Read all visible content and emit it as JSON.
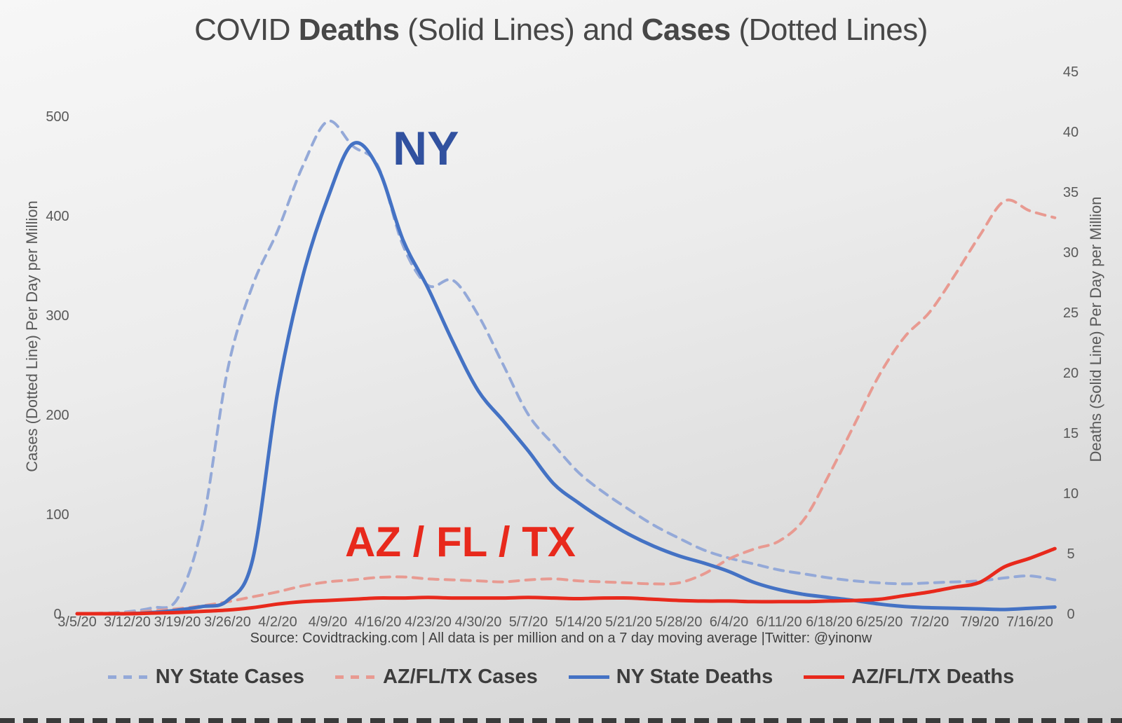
{
  "title": {
    "prefix": "COVID ",
    "bold1": "Deaths",
    "mid1": " (Solid Lines) and ",
    "bold2": "Cases",
    "suffix": " (Dotted Lines)"
  },
  "source_line": "Source: Covidtracking.com | All data is per million and on a 7 day moving average |Twitter: @yinonw",
  "legend": [
    {
      "label": "NY State Cases",
      "style": "dashed",
      "color": "#94a9d8"
    },
    {
      "label": "AZ/FL/TX Cases",
      "style": "dashed",
      "color": "#e89a91"
    },
    {
      "label": "NY State Deaths",
      "style": "solid",
      "color": "#4472c4"
    },
    {
      "label": "AZ/FL/TX Deaths",
      "style": "solid",
      "color": "#e8291c"
    }
  ],
  "chart_data": {
    "type": "line",
    "title": "COVID Deaths (Solid Lines) and Cases (Dotted Lines)",
    "x_tick_labels": [
      "3/5/20",
      "3/12/20",
      "3/19/20",
      "3/26/20",
      "4/2/20",
      "4/9/20",
      "4/16/20",
      "4/23/20",
      "4/30/20",
      "5/7/20",
      "5/14/20",
      "5/21/20",
      "5/28/20",
      "6/4/20",
      "6/11/20",
      "6/18/20",
      "6/25/20",
      "7/2/20",
      "7/9/20",
      "7/16/20"
    ],
    "sampling": "series values sampled every 3.5 days starting 3/5/20; weekly x tick k corresponds to sample index 2k",
    "left_axis": {
      "label": "Cases (Dotted Line) Per Day per Million",
      "ticks": [
        0,
        100,
        200,
        300,
        400,
        500
      ],
      "range": [
        0,
        500
      ]
    },
    "right_axis": {
      "label": "Deaths  (Solid Line) Per Day per Million",
      "ticks": [
        0,
        5,
        10,
        15,
        20,
        25,
        30,
        35,
        40,
        45
      ],
      "range": [
        0,
        45
      ]
    },
    "grid": false,
    "legend_position": "bottom",
    "series": [
      {
        "name": "NY State Cases",
        "axis": "left",
        "style": "dashed",
        "color": "#94a9d8",
        "values": [
          0,
          0.5,
          2,
          6,
          15,
          90,
          245,
          330,
          385,
          450,
          495,
          470,
          450,
          370,
          330,
          335,
          300,
          250,
          200,
          170,
          142,
          122,
          105,
          89,
          76,
          64,
          56,
          50,
          44,
          40,
          36,
          33,
          31,
          30,
          31,
          32,
          33,
          36,
          38,
          34
        ]
      },
      {
        "name": "AZ/FL/TX Cases",
        "axis": "left",
        "style": "dashed",
        "color": "#e89a91",
        "values": [
          0,
          0.5,
          1,
          3,
          5,
          8,
          12,
          17,
          22,
          28,
          32,
          34,
          36.5,
          37,
          35,
          34,
          33,
          32,
          34,
          35,
          33,
          32,
          31,
          30,
          31,
          40,
          55,
          65,
          73,
          95,
          140,
          190,
          240,
          278,
          303,
          340,
          380,
          415,
          405,
          398
        ]
      },
      {
        "name": "NY State Deaths",
        "axis": "right",
        "style": "solid",
        "color": "#4472c4",
        "values": [
          0,
          0,
          0,
          0.1,
          0.3,
          0.6,
          1.1,
          4.5,
          18.4,
          28,
          34.5,
          39,
          37,
          31,
          27,
          22.5,
          18.5,
          16,
          13.5,
          10.8,
          9.2,
          7.8,
          6.6,
          5.6,
          4.8,
          4.2,
          3.5,
          2.6,
          2.0,
          1.6,
          1.35,
          1.1,
          0.8,
          0.6,
          0.5,
          0.45,
          0.4,
          0.35,
          0.45,
          0.55
        ]
      },
      {
        "name": "AZ/FL/TX Deaths",
        "axis": "right",
        "style": "solid",
        "color": "#e8291c",
        "values": [
          0,
          0,
          0,
          0.05,
          0.1,
          0.2,
          0.3,
          0.5,
          0.8,
          1.0,
          1.1,
          1.2,
          1.3,
          1.3,
          1.35,
          1.3,
          1.3,
          1.3,
          1.35,
          1.3,
          1.25,
          1.3,
          1.3,
          1.2,
          1.1,
          1.05,
          1.05,
          1.0,
          1.0,
          1.0,
          1.05,
          1.1,
          1.2,
          1.5,
          1.8,
          2.2,
          2.6,
          3.9,
          4.6,
          5.4
        ]
      }
    ],
    "annotations": {
      "ny": {
        "text": "NY",
        "color": "#31519f"
      },
      "az": {
        "text": "AZ / FL / TX",
        "color": "#e8291c"
      }
    }
  }
}
